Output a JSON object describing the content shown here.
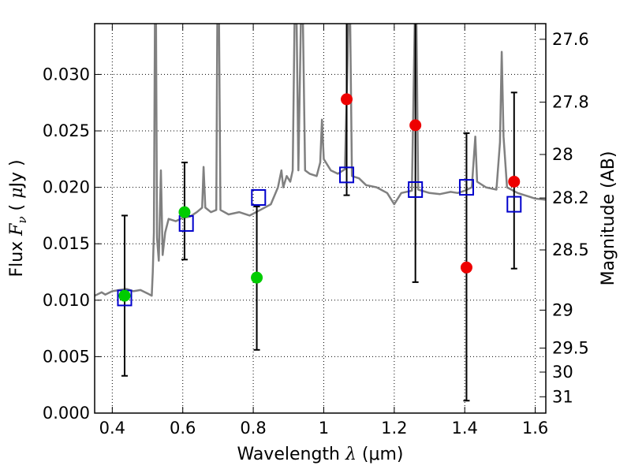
{
  "chart_data": {
    "type": "scatter",
    "xlabel": "Wavelength  λ (μm)",
    "xlabel_parts": {
      "pre": "Wavelength  ",
      "symbol": "λ",
      "post": " (μm)"
    },
    "ylabel": "Flux  Fν  ( μJy )",
    "ylabel_parts": {
      "pre": "Flux  ",
      "symbol": "F",
      "sub": "ν",
      "mid": "  ( ",
      "unit_mu": "μ",
      "post": "Jy )"
    },
    "ylabel_right": "Magnitude (AB)",
    "xlim": [
      0.35,
      1.63
    ],
    "ylim": [
      0.0,
      0.0345
    ],
    "grid": true,
    "x_ticks": [
      0.4,
      0.6,
      0.8,
      1.0,
      1.2,
      1.4,
      1.6
    ],
    "x_tick_labels": [
      "0.4",
      "0.6",
      "0.8",
      "1",
      "1.2",
      "1.4",
      "1.6"
    ],
    "y_ticks": [
      0.0,
      0.005,
      0.01,
      0.015,
      0.02,
      0.025,
      0.03
    ],
    "y_tick_labels": [
      "0.000",
      "0.005",
      "0.010",
      "0.015",
      "0.020",
      "0.025",
      "0.030"
    ],
    "right_ticks": [
      27.6,
      27.8,
      28.0,
      28.2,
      28.5,
      29.0,
      29.5,
      30.0,
      31.0
    ],
    "right_tick_labels": [
      "27.6",
      "27.8",
      "28",
      "28.2",
      "28.5",
      "29",
      "29.5",
      "30",
      "31"
    ],
    "series": [
      {
        "marker": "square",
        "color": "#0000cc",
        "points": [
          {
            "x": 0.435,
            "y": 0.0102
          },
          {
            "x": 0.61,
            "y": 0.0168
          },
          {
            "x": 0.815,
            "y": 0.0191
          },
          {
            "x": 1.065,
            "y": 0.0211
          },
          {
            "x": 1.26,
            "y": 0.0198
          },
          {
            "x": 1.405,
            "y": 0.02
          },
          {
            "x": 1.54,
            "y": 0.0185
          }
        ]
      },
      {
        "marker": "circle",
        "color": "#00cc00",
        "points": [
          {
            "x": 0.435,
            "y": 0.0104
          },
          {
            "x": 0.605,
            "y": 0.0178
          },
          {
            "x": 0.81,
            "y": 0.012
          }
        ]
      },
      {
        "marker": "circle",
        "color": "#ee0000",
        "points": [
          {
            "x": 1.065,
            "y": 0.0278
          },
          {
            "x": 1.26,
            "y": 0.0255
          },
          {
            "x": 1.405,
            "y": 0.0129
          },
          {
            "x": 1.54,
            "y": 0.0205
          }
        ]
      }
    ],
    "error_bars": [
      {
        "x": 0.435,
        "low": 0.0033,
        "high": 0.0175
      },
      {
        "x": 0.605,
        "low": 0.0136,
        "high": 0.0222
      },
      {
        "x": 0.81,
        "low": 0.0056,
        "high": 0.0183
      },
      {
        "x": 1.065,
        "low": 0.0193,
        "high": 0.0345
      },
      {
        "x": 1.26,
        "low": 0.0116,
        "high": 0.0345
      },
      {
        "x": 1.405,
        "low": 0.0011,
        "high": 0.0248
      },
      {
        "x": 1.54,
        "low": 0.0128,
        "high": 0.0284
      }
    ],
    "spectrum": {
      "color": "#808080",
      "points": [
        [
          0.35,
          0.0104
        ],
        [
          0.37,
          0.0107
        ],
        [
          0.38,
          0.0105
        ],
        [
          0.4,
          0.0108
        ],
        [
          0.42,
          0.0109
        ],
        [
          0.44,
          0.011
        ],
        [
          0.46,
          0.0108
        ],
        [
          0.48,
          0.0109
        ],
        [
          0.5,
          0.0106
        ],
        [
          0.512,
          0.0104
        ],
        [
          0.515,
          0.0125
        ],
        [
          0.518,
          0.016
        ],
        [
          0.521,
          0.0345
        ],
        [
          0.524,
          0.0345
        ],
        [
          0.527,
          0.0155
        ],
        [
          0.532,
          0.0135
        ],
        [
          0.538,
          0.0215
        ],
        [
          0.543,
          0.014
        ],
        [
          0.55,
          0.016
        ],
        [
          0.56,
          0.0172
        ],
        [
          0.58,
          0.017
        ],
        [
          0.6,
          0.0173
        ],
        [
          0.62,
          0.0174
        ],
        [
          0.64,
          0.0178
        ],
        [
          0.655,
          0.0182
        ],
        [
          0.659,
          0.0218
        ],
        [
          0.664,
          0.0182
        ],
        [
          0.68,
          0.0178
        ],
        [
          0.695,
          0.018
        ],
        [
          0.698,
          0.0345
        ],
        [
          0.703,
          0.0345
        ],
        [
          0.707,
          0.018
        ],
        [
          0.73,
          0.0176
        ],
        [
          0.76,
          0.0178
        ],
        [
          0.79,
          0.0175
        ],
        [
          0.82,
          0.018
        ],
        [
          0.85,
          0.0185
        ],
        [
          0.87,
          0.02
        ],
        [
          0.88,
          0.0215
        ],
        [
          0.885,
          0.02
        ],
        [
          0.895,
          0.021
        ],
        [
          0.905,
          0.0205
        ],
        [
          0.912,
          0.0215
        ],
        [
          0.917,
          0.0345
        ],
        [
          0.923,
          0.0345
        ],
        [
          0.928,
          0.0215
        ],
        [
          0.935,
          0.0345
        ],
        [
          0.941,
          0.0345
        ],
        [
          0.947,
          0.0215
        ],
        [
          0.96,
          0.0212
        ],
        [
          0.98,
          0.021
        ],
        [
          0.99,
          0.0222
        ],
        [
          0.995,
          0.026
        ],
        [
          1.0,
          0.0225
        ],
        [
          1.02,
          0.0215
        ],
        [
          1.04,
          0.0212
        ],
        [
          1.06,
          0.0216
        ],
        [
          1.07,
          0.0345
        ],
        [
          1.075,
          0.0345
        ],
        [
          1.08,
          0.021
        ],
        [
          1.1,
          0.0208
        ],
        [
          1.12,
          0.0202
        ],
        [
          1.15,
          0.02
        ],
        [
          1.18,
          0.0195
        ],
        [
          1.2,
          0.0185
        ],
        [
          1.22,
          0.0195
        ],
        [
          1.25,
          0.0197
        ],
        [
          1.258,
          0.0345
        ],
        [
          1.263,
          0.0345
        ],
        [
          1.268,
          0.0198
        ],
        [
          1.3,
          0.0195
        ],
        [
          1.33,
          0.0194
        ],
        [
          1.36,
          0.0196
        ],
        [
          1.38,
          0.0195
        ],
        [
          1.4,
          0.0197
        ],
        [
          1.42,
          0.02
        ],
        [
          1.43,
          0.0245
        ],
        [
          1.435,
          0.0205
        ],
        [
          1.46,
          0.02
        ],
        [
          1.49,
          0.0198
        ],
        [
          1.5,
          0.024
        ],
        [
          1.505,
          0.032
        ],
        [
          1.51,
          0.0245
        ],
        [
          1.52,
          0.02
        ],
        [
          1.55,
          0.0195
        ],
        [
          1.58,
          0.0192
        ],
        [
          1.6,
          0.019
        ],
        [
          1.63,
          0.0189
        ]
      ]
    }
  }
}
